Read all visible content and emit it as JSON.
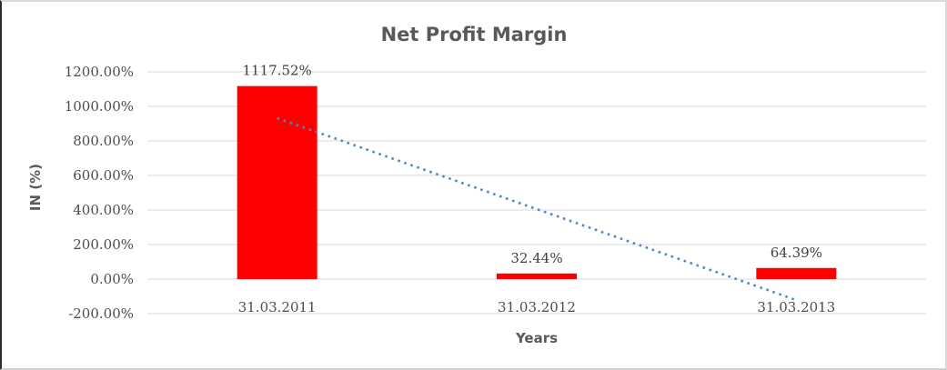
{
  "chart_data": {
    "type": "bar",
    "title": "Net Profit Margin",
    "xlabel": "Years",
    "ylabel": "IN (%)",
    "categories": [
      "31.03.2011",
      "31.03.2012",
      "31.03.2013"
    ],
    "values": [
      1117.52,
      32.44,
      64.39
    ],
    "data_labels": [
      "1117.52%",
      "32.44%",
      "64.39%"
    ],
    "ylim": [
      -200,
      1200
    ],
    "yticks": [
      {
        "value": 1200,
        "label": "1200.00%"
      },
      {
        "value": 1000,
        "label": "1000.00%"
      },
      {
        "value": 800,
        "label": "800.00%"
      },
      {
        "value": 600,
        "label": "600.00%"
      },
      {
        "value": 400,
        "label": "400.00%"
      },
      {
        "value": 200,
        "label": "200.00%"
      },
      {
        "value": 0,
        "label": "0.00%"
      },
      {
        "value": -200,
        "label": "-200.00%"
      }
    ],
    "grid": true,
    "legend": "none",
    "bar_color": "#FF0000",
    "gridline_color": "#D9D9D9",
    "text_color": "#595959",
    "trendline": {
      "type": "linear",
      "style": "dotted",
      "color": "#4F87C8",
      "start_value": 931.8,
      "end_value": -121.5
    }
  }
}
